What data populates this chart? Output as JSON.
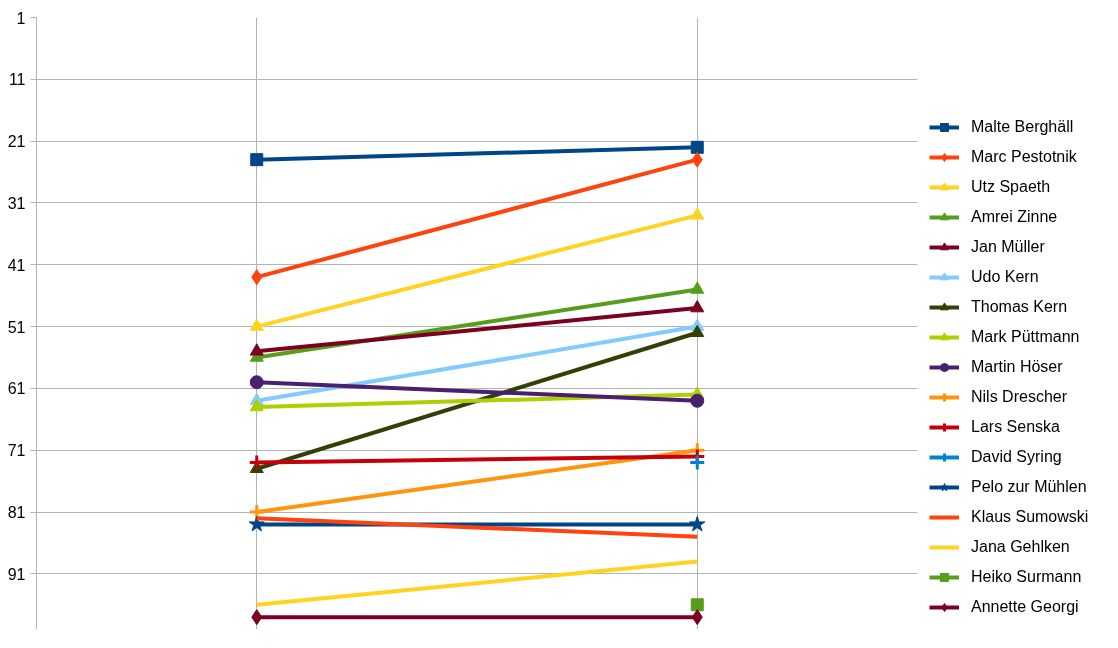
{
  "chart_data": {
    "type": "line",
    "categories": [
      null,
      null
    ],
    "ylim": [
      100,
      1
    ],
    "yticks": [
      1,
      11,
      21,
      31,
      41,
      51,
      61,
      71,
      81,
      91
    ],
    "tick_labels": "y",
    "grid": true,
    "legend": "right",
    "series": [
      {
        "name": "Malte Berghäll",
        "color": "#004586",
        "marker": "square",
        "values": [
          24,
          22
        ]
      },
      {
        "name": "Marc Pestotnik",
        "color": "#ff420e",
        "marker": "diamond",
        "values": [
          43,
          24
        ]
      },
      {
        "name": "Utz Spaeth",
        "color": "#ffd320",
        "marker": "triangle",
        "values": [
          51,
          33
        ]
      },
      {
        "name": "Amrei Zinne",
        "color": "#579d1c",
        "marker": "triangle",
        "values": [
          56,
          45
        ]
      },
      {
        "name": "Jan Müller",
        "color": "#7e0021",
        "marker": "triangle",
        "values": [
          55,
          48
        ]
      },
      {
        "name": "Udo Kern",
        "color": "#83caff",
        "marker": "triangle",
        "values": [
          63,
          51
        ]
      },
      {
        "name": "Thomas Kern",
        "color": "#314004",
        "marker": "triangle",
        "values": [
          74,
          52
        ]
      },
      {
        "name": "Mark Püttmann",
        "color": "#aecf00",
        "marker": "triangle",
        "values": [
          64,
          62
        ]
      },
      {
        "name": "Martin Höser",
        "color": "#4b1f6f",
        "marker": "circle",
        "values": [
          60,
          63
        ]
      },
      {
        "name": "Nils Drescher",
        "color": "#ff950e",
        "marker": "cross",
        "values": [
          81,
          71
        ]
      },
      {
        "name": "Lars Senska",
        "color": "#c5000b",
        "marker": "cross",
        "values": [
          73,
          72
        ]
      },
      {
        "name": "David Syring",
        "color": "#0084d1",
        "marker": "cross",
        "values": [
          null,
          73
        ]
      },
      {
        "name": "Pelo zur Mühlen",
        "color": "#004586",
        "marker": "star",
        "values": [
          83,
          83
        ]
      },
      {
        "name": "Klaus Sumowski",
        "color": "#ff420e",
        "marker": "none",
        "values": [
          82,
          85
        ]
      },
      {
        "name": "Jana Gehlken",
        "color": "#ffd320",
        "marker": "none",
        "values": [
          96,
          89
        ]
      },
      {
        "name": "Heiko Surmann",
        "color": "#579d1c",
        "marker": "square",
        "values": [
          null,
          96
        ]
      },
      {
        "name": "Annette Georgi",
        "color": "#7e0021",
        "marker": "diamond",
        "values": [
          98,
          98
        ]
      }
    ]
  }
}
